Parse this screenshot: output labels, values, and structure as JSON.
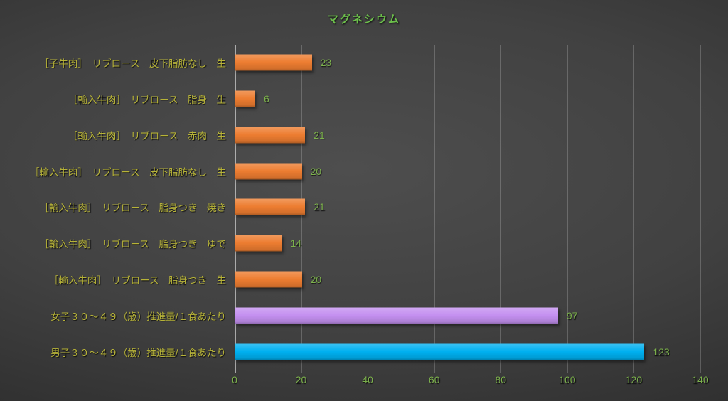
{
  "title": "マグネシウム",
  "colors": {
    "title_green": "#6cbf4b",
    "category_label_yellow": "#b7b338",
    "value_label_green": "#7cb14c",
    "tick_label_green": "#7cb14c",
    "bar_orange": "#ED7D31",
    "bar_purple": "#C490F0",
    "bar_blue": "#00B0F0",
    "gridline": "rgba(255,255,255,0.20)",
    "background_dark": "#3a3a3a"
  },
  "chart_data": {
    "type": "bar",
    "orientation": "horizontal",
    "title": "マグネシウム",
    "categories": [
      "［子牛肉］　リブロース　皮下脂肪なし　生",
      "［輸入牛肉］　リブロース　脂身　生",
      "［輸入牛肉］　リブロース　赤肉　生",
      "［輸入牛肉］　リブロース　皮下脂肪なし　生",
      "［輸入牛肉］　リブロース　脂身つき　焼き",
      "［輸入牛肉］　リブロース　脂身つき　ゆで",
      "［輸入牛肉］　リブロース　脂身つき　生",
      "女子３０～４９（歳）推進量/１食あたり",
      "男子３０～４９（歳）推進量/１食あたり"
    ],
    "values": [
      23,
      6,
      21,
      20,
      21,
      14,
      20,
      97,
      123
    ],
    "bar_colors": [
      "#ED7D31",
      "#ED7D31",
      "#ED7D31",
      "#ED7D31",
      "#ED7D31",
      "#ED7D31",
      "#ED7D31",
      "#C490F0",
      "#00B0F0"
    ],
    "value_labels": [
      "23",
      "6",
      "21",
      "20",
      "21",
      "14",
      "20",
      "97",
      "123"
    ],
    "xlabel": "",
    "ylabel": "",
    "xlim": [
      0,
      140
    ],
    "xticks": [
      0,
      20,
      40,
      60,
      80,
      100,
      120,
      140
    ],
    "grid": true,
    "legend": "none",
    "data_labels_shown": true
  }
}
